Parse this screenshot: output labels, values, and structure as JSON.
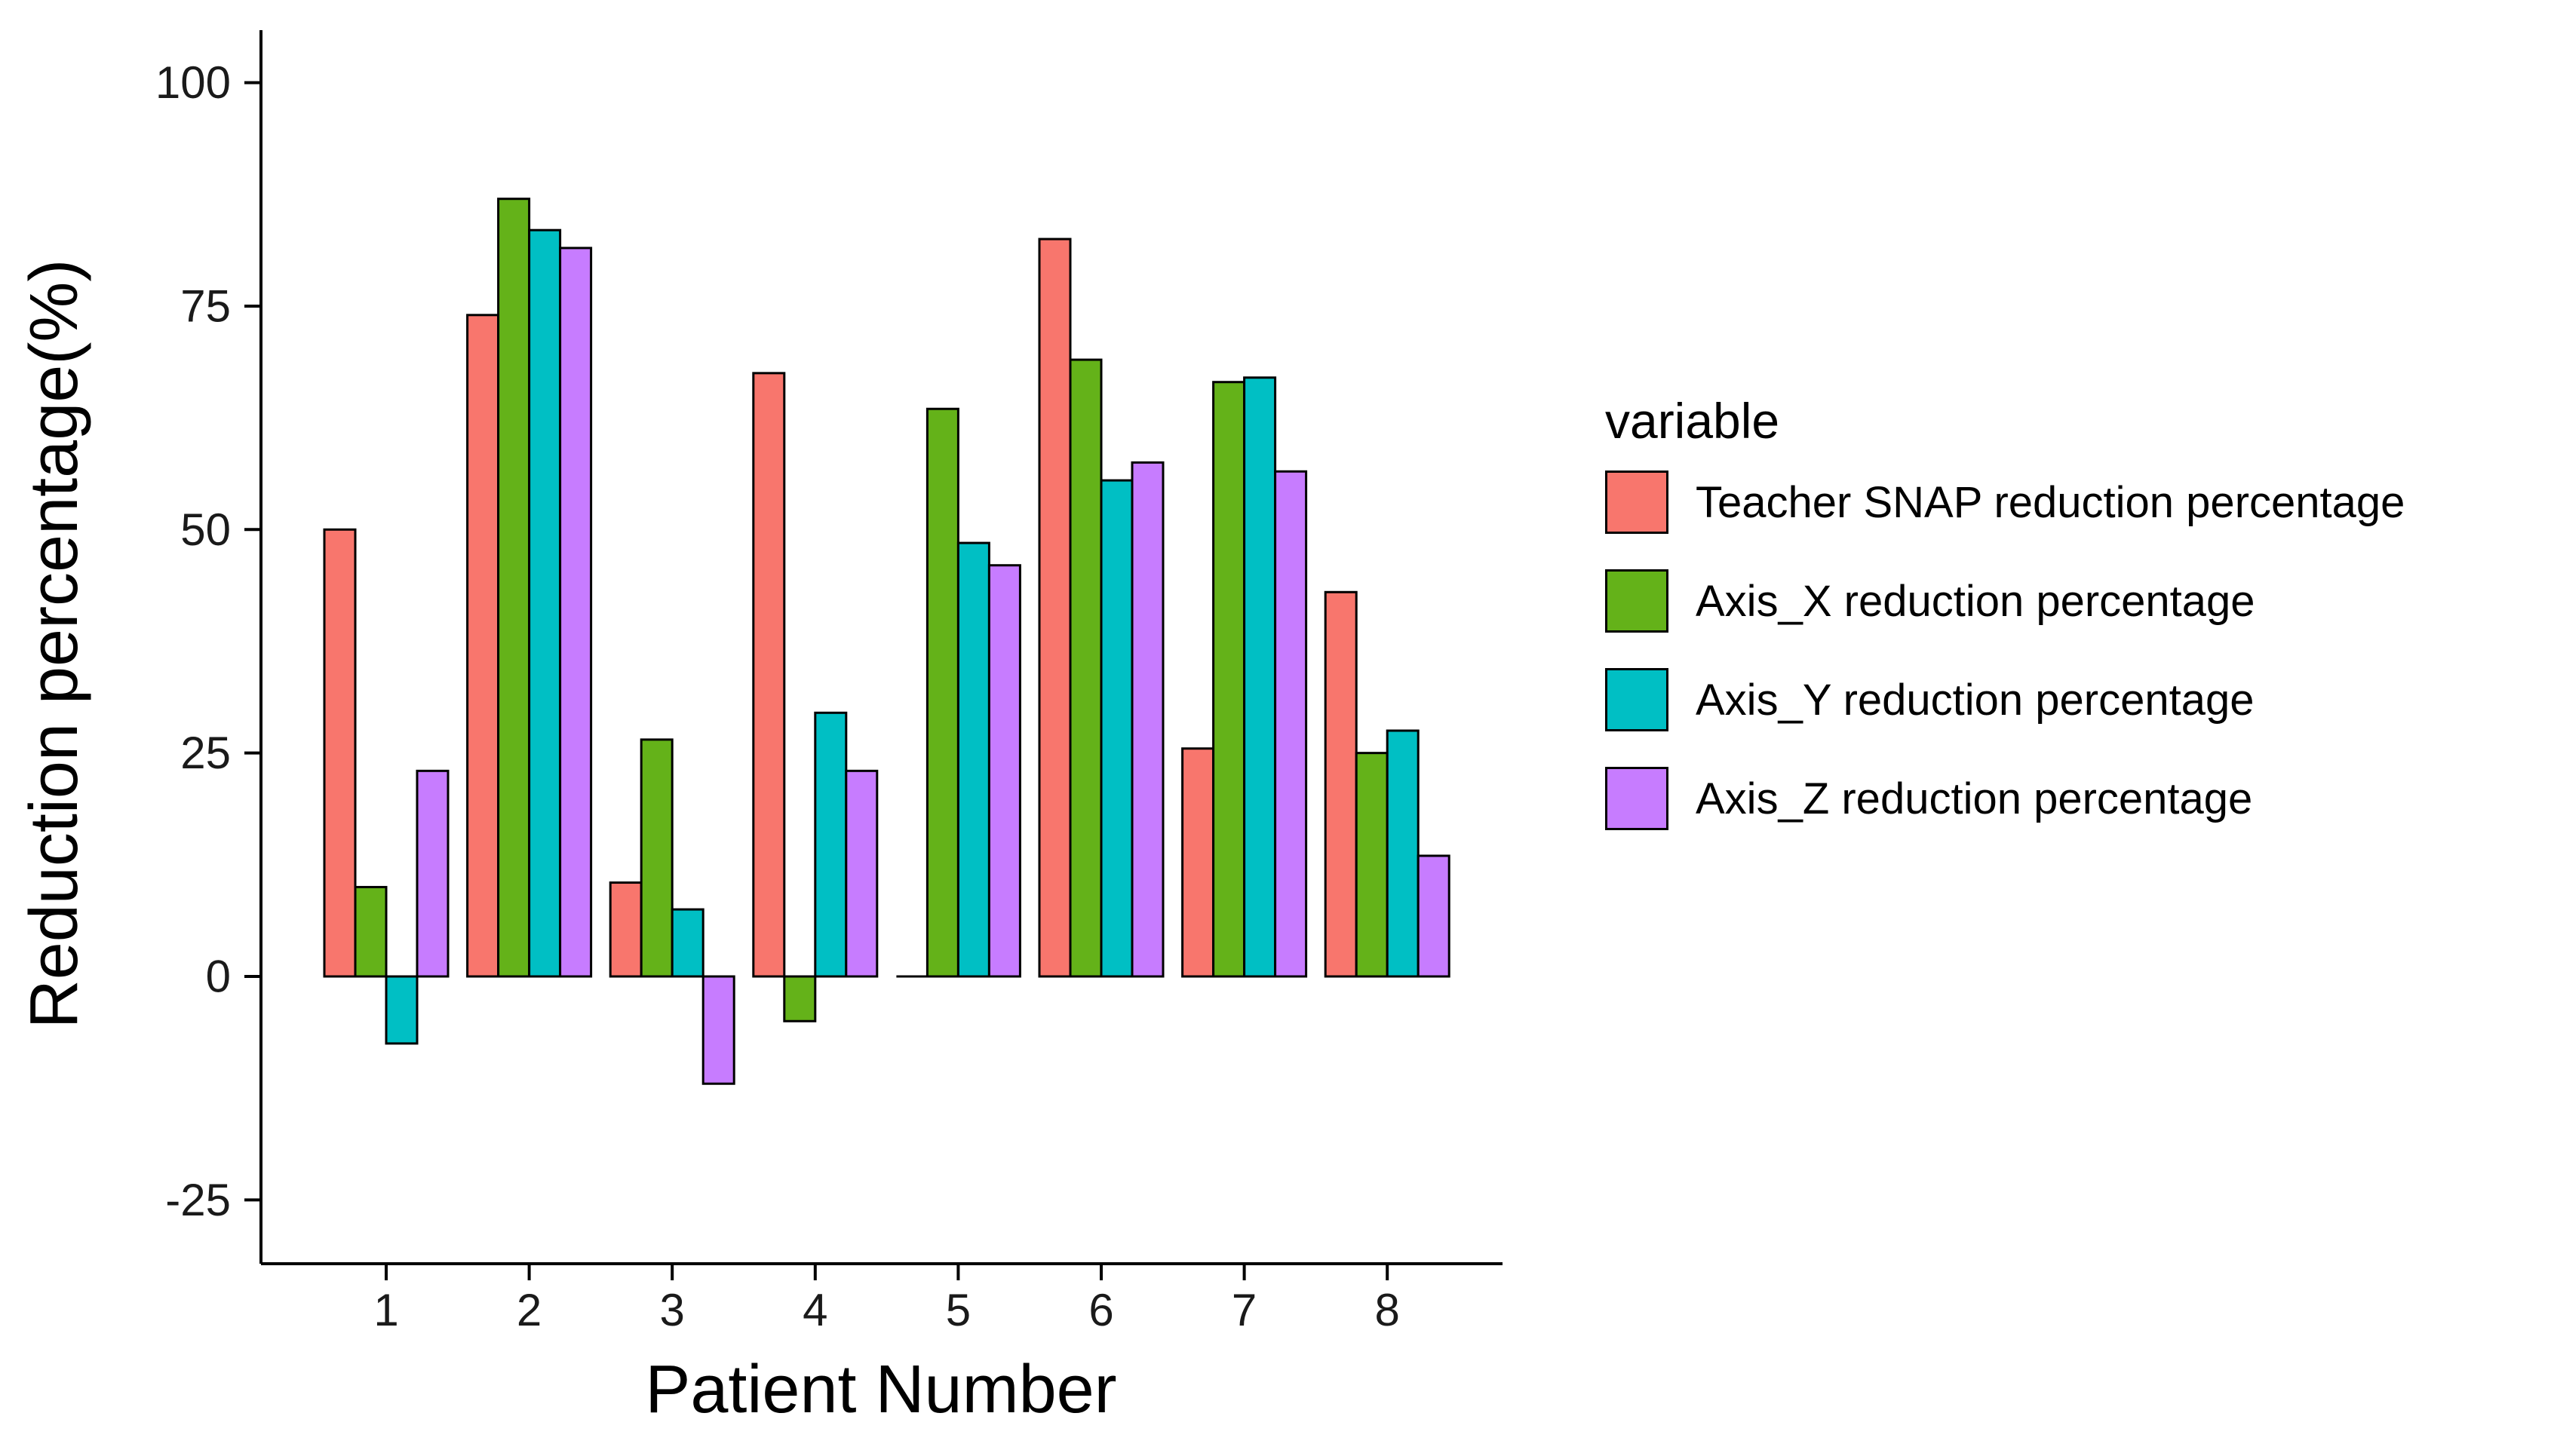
{
  "chart_data": {
    "type": "bar",
    "title": "",
    "xlabel": "Patient Number",
    "ylabel": "Reduction percentage(%)",
    "categories": [
      "1",
      "2",
      "3",
      "4",
      "5",
      "6",
      "7",
      "8"
    ],
    "y_ticks": [
      -25,
      0,
      25,
      50,
      75,
      100
    ],
    "ylim": [
      -30,
      105
    ],
    "grid": "off",
    "legend": {
      "title": "variable",
      "position": "right"
    },
    "bar_outline_color": "#000000",
    "series": [
      {
        "name": "Teacher SNAP reduction percentage",
        "color": "#F8766D",
        "values": [
          50,
          74,
          10.5,
          67.5,
          0,
          82.5,
          25.5,
          43
        ]
      },
      {
        "name": "Axis_X reduction percentage",
        "color": "#64B219",
        "values": [
          10,
          87,
          26.5,
          -5,
          63.5,
          69,
          66.5,
          25
        ]
      },
      {
        "name": "Axis_Y reduction percentage",
        "color": "#00BFC4",
        "values": [
          -7.5,
          83.5,
          7.5,
          29.5,
          48.5,
          55.5,
          67,
          27.5
        ]
      },
      {
        "name": "Axis_Z reduction percentage",
        "color": "#C77CFF",
        "values": [
          23,
          81.5,
          -12,
          23,
          46,
          57.5,
          56.5,
          13.5
        ]
      }
    ]
  }
}
